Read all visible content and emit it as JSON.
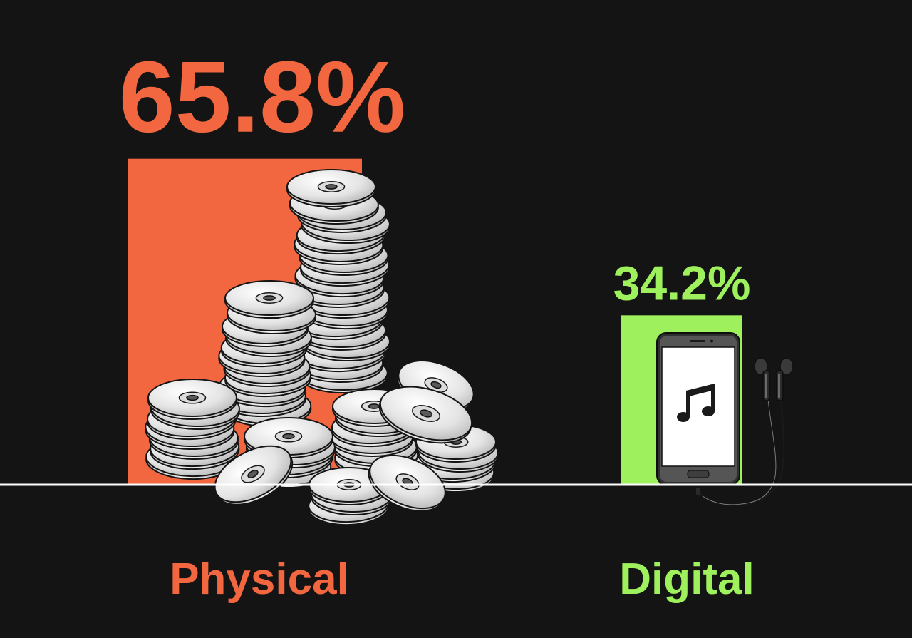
{
  "chart_data": {
    "type": "bar",
    "categories": [
      "Physical",
      "Digital"
    ],
    "values": [
      65.8,
      34.2
    ],
    "value_labels": [
      "65.8%",
      "34.2%"
    ],
    "ylim": [
      0,
      70
    ],
    "grid": false,
    "colors": [
      "#f26640",
      "#9ef05c"
    ],
    "background": "#141414",
    "baseline_color": "#ffffff",
    "illustrations": [
      "cd-stack-icon",
      "smartphone-earphones-icon"
    ]
  }
}
